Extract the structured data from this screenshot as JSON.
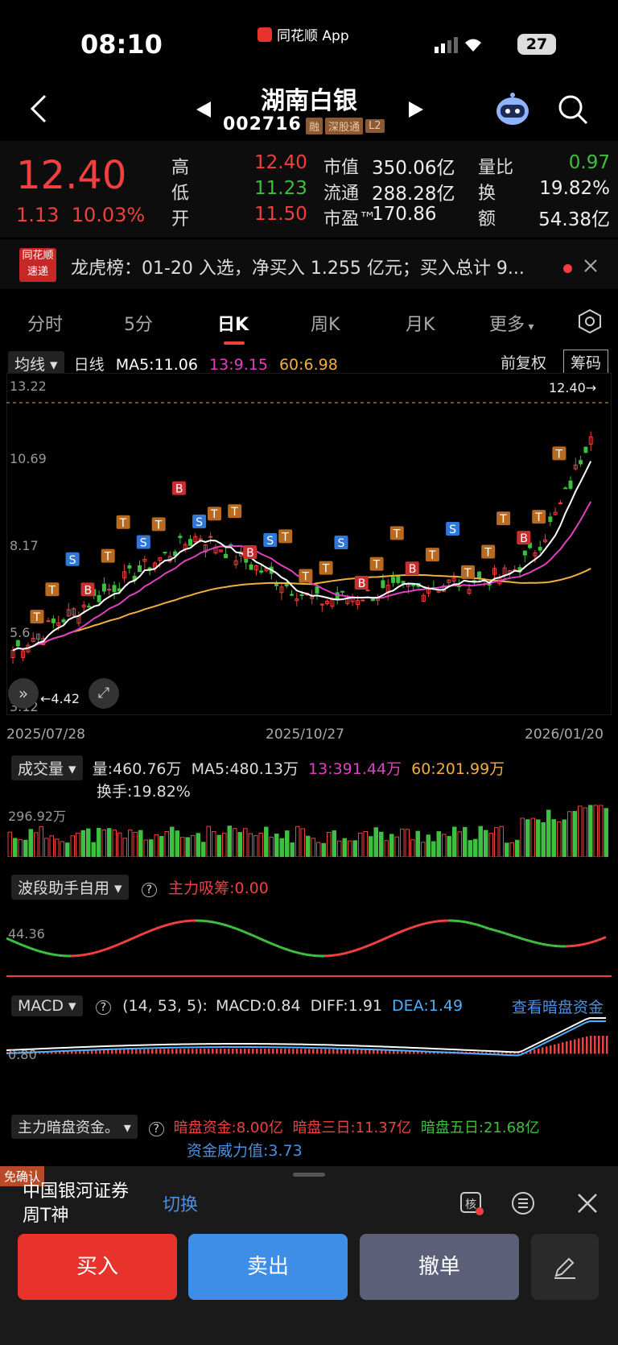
{
  "status": {
    "time": "08:10",
    "app": "同花顺 App",
    "battery": "27"
  },
  "header": {
    "title": "湖南白银",
    "code": "002716",
    "tags": [
      "融",
      "深股通",
      "L2"
    ]
  },
  "quote": {
    "price": "12.40",
    "change": "1.13",
    "change_pct": "10.03%",
    "rows": [
      [
        {
          "label": "高",
          "value": "12.40",
          "color": "red"
        },
        {
          "label": "市值",
          "value": "350.06亿",
          "color": "white"
        },
        {
          "label": "量比",
          "value": "0.97",
          "color": "green"
        }
      ],
      [
        {
          "label": "低",
          "value": "11.23",
          "color": "green"
        },
        {
          "label": "流通",
          "value": "288.28亿",
          "color": "white"
        },
        {
          "label": "换",
          "value": "19.82%",
          "color": "white"
        }
      ],
      [
        {
          "label": "开",
          "value": "11.50",
          "color": "red"
        },
        {
          "label": "市盈™",
          "value": "170.86",
          "color": "white"
        },
        {
          "label": "额",
          "value": "54.38亿",
          "color": "white"
        }
      ]
    ]
  },
  "notice": {
    "logo": "同花顺\n速递",
    "text": "龙虎榜：01-20 入选，净买入 1.255 亿元；买入总计 9..."
  },
  "tabs": [
    "分时",
    "5分",
    "日K",
    "周K",
    "月K",
    "更多"
  ],
  "ma": {
    "label": "均线",
    "period": "日线",
    "ma5": "MA5:11.06",
    "ma13": "13:9.15",
    "ma60": "60:6.98",
    "adjust": "前复权",
    "chips": "筹码"
  },
  "kline": {
    "y_ticks": [
      "13.22",
      "10.69",
      "8.17",
      "5.6",
      "3.12"
    ],
    "last_price": "12.40→",
    "low_label": "4.42",
    "dates": [
      "2025/07/28",
      "2025/10/27",
      "2026/01/20"
    ]
  },
  "volume": {
    "label": "成交量",
    "value": "量:460.76万",
    "ma5": "MA5:480.13万",
    "ma13": "13:391.44万",
    "ma60": "60:201.99万",
    "turnover": "换手:19.82%",
    "tick": "296.92万"
  },
  "wave": {
    "label": "波段助手自用",
    "info": "主力吸筹:0.00",
    "tick": "44.36"
  },
  "macd": {
    "label": "MACD",
    "params": "(14, 53, 5):",
    "macd": "MACD:0.84",
    "diff": "DIFF:1.91",
    "dea": "DEA:1.49",
    "link": "查看暗盘资金",
    "tick": "0.80"
  },
  "dark": {
    "label": "主力暗盘资金。",
    "fund": "暗盘资金:8.00亿",
    "three": "暗盘三日:11.37亿",
    "five": "暗盘五日:21.68亿",
    "power": "资金威力值:3.73"
  },
  "bottom": {
    "mianque": "免确认",
    "broker": "中国银河证券",
    "user": "周T神",
    "switch": "切换",
    "buy": "买入",
    "sell": "卖出",
    "cancel": "撤单"
  },
  "colors": {
    "up": "#f04040",
    "down": "#3fbf3f",
    "accent": "#4a90e2"
  }
}
